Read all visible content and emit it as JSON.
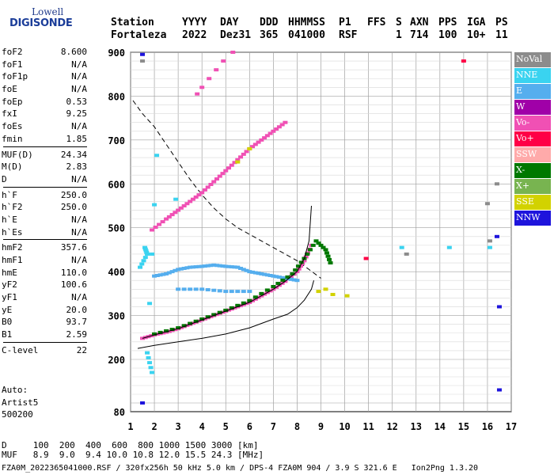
{
  "logo": {
    "top": "Lowell",
    "bottom": "DIGISONDE"
  },
  "header": {
    "labels": [
      "Station",
      "YYYY",
      "DAY",
      "DDD",
      "HHMMSS",
      "P1",
      "FFS",
      "S",
      "AXN",
      "PPS",
      "IGA",
      "PS"
    ],
    "values": [
      "Fortaleza",
      "2022",
      "Dez31",
      "365",
      "041000",
      "RSF",
      "",
      "1",
      "714",
      "100",
      "10+",
      "11"
    ]
  },
  "params": [
    {
      "name": "foF2",
      "value": "8.600"
    },
    {
      "name": "foF1",
      "value": "N/A"
    },
    {
      "name": "foF1p",
      "value": "N/A"
    },
    {
      "name": "foE",
      "value": "N/A"
    },
    {
      "name": "foEp",
      "value": "0.53"
    },
    {
      "name": "fxI",
      "value": "9.25"
    },
    {
      "name": "foEs",
      "value": "N/A"
    },
    {
      "name": "fmin",
      "value": "1.85"
    },
    {
      "name": "MUF(D)",
      "value": "24.34"
    },
    {
      "name": "M(D)",
      "value": "2.83"
    },
    {
      "name": "D",
      "value": "N/A"
    },
    {
      "name": "h`F",
      "value": "250.0"
    },
    {
      "name": "h`F2",
      "value": "250.0"
    },
    {
      "name": "h`E",
      "value": "N/A"
    },
    {
      "name": "h`Es",
      "value": "N/A"
    },
    {
      "name": "hmF2",
      "value": "357.6"
    },
    {
      "name": "hmF1",
      "value": "N/A"
    },
    {
      "name": "hmE",
      "value": "110.0"
    },
    {
      "name": "yF2",
      "value": "100.6"
    },
    {
      "name": "yF1",
      "value": "N/A"
    },
    {
      "name": "yE",
      "value": "20.0"
    },
    {
      "name": "B0",
      "value": "93.7"
    },
    {
      "name": "B1",
      "value": "2.59"
    },
    {
      "name": "C-level",
      "value": "22"
    }
  ],
  "autoscaling": {
    "line1": "Auto:",
    "line2": "Artist5",
    "line3": "500200"
  },
  "legend": [
    {
      "label": "NoVal",
      "color": "#8c8c8c"
    },
    {
      "label": "NNE",
      "color": "#3ad3f0"
    },
    {
      "label": "E",
      "color": "#55aeee"
    },
    {
      "label": "W",
      "color": "#a000a8"
    },
    {
      "label": "Vo-",
      "color": "#f050b4"
    },
    {
      "label": "Vo+",
      "color": "#ff0046"
    },
    {
      "label": "SSW",
      "color": "#ffaaaa"
    },
    {
      "label": "X-",
      "color": "#007800"
    },
    {
      "label": "X+",
      "color": "#78b450"
    },
    {
      "label": "SSE",
      "color": "#d2d200"
    },
    {
      "label": "NNW",
      "color": "#1e14dc"
    }
  ],
  "bottom": {
    "row1": "D     100  200  400  600  800 1000 1500 3000 [km]",
    "row2": "MUF   8.9  9.0  9.4 10.0 10.8 12.0 15.5 24.3 [MHz]"
  },
  "footer": "FZA0M_2022365041000.RSF / 320fx256h 50 kHz 5.0 km / DPS-4 FZA0M 904 / 3.9 S 321.6 E   Ion2Png 1.3.20",
  "chart_data": {
    "type": "scatter",
    "xlim": [
      1,
      17
    ],
    "ylim": [
      80,
      900
    ],
    "x_ticks": [
      1,
      2,
      3,
      4,
      5,
      6,
      7,
      8,
      9,
      10,
      11,
      12,
      13,
      14,
      15,
      16,
      17
    ],
    "y_ticks": [
      80,
      200,
      300,
      400,
      500,
      600,
      700,
      800,
      900
    ],
    "grid": true,
    "series": [
      {
        "name": "Vo-",
        "color": "#f050b4",
        "points": [
          [
            1.5,
            248
          ],
          [
            2.0,
            256
          ],
          [
            2.5,
            262
          ],
          [
            3.0,
            270
          ],
          [
            3.5,
            280
          ],
          [
            4.0,
            290
          ],
          [
            4.5,
            300
          ],
          [
            5.0,
            310
          ],
          [
            5.5,
            320
          ],
          [
            6.0,
            330
          ],
          [
            6.5,
            345
          ],
          [
            7.0,
            360
          ],
          [
            7.5,
            378
          ],
          [
            8.0,
            400
          ],
          [
            8.3,
            425
          ],
          [
            8.6,
            460
          ]
        ]
      },
      {
        "name": "Vo-",
        "color": "#f050b4",
        "points": [
          [
            1.9,
            495
          ],
          [
            2.5,
            520
          ],
          [
            3.0,
            540
          ],
          [
            3.5,
            560
          ],
          [
            4.0,
            580
          ],
          [
            4.5,
            605
          ],
          [
            5.0,
            630
          ],
          [
            5.5,
            655
          ],
          [
            6.0,
            680
          ],
          [
            6.5,
            700
          ],
          [
            7.0,
            720
          ],
          [
            7.5,
            740
          ]
        ]
      },
      {
        "name": "Vo-",
        "color": "#f050b4",
        "points": [
          [
            3.8,
            805
          ],
          [
            4.0,
            820
          ],
          [
            4.3,
            840
          ],
          [
            4.6,
            860
          ],
          [
            4.9,
            880
          ],
          [
            5.3,
            900
          ]
        ]
      },
      {
        "name": "E",
        "color": "#55aeee",
        "points": [
          [
            2.0,
            390
          ],
          [
            2.5,
            395
          ],
          [
            3.0,
            405
          ],
          [
            3.5,
            410
          ],
          [
            4.0,
            412
          ],
          [
            4.5,
            415
          ],
          [
            5.0,
            412
          ],
          [
            5.5,
            410
          ],
          [
            6.0,
            400
          ],
          [
            6.5,
            395
          ],
          [
            7.0,
            390
          ],
          [
            7.5,
            385
          ],
          [
            8.0,
            380
          ],
          [
            3.0,
            360
          ],
          [
            4.0,
            360
          ],
          [
            5.0,
            355
          ],
          [
            6.0,
            355
          ]
        ]
      },
      {
        "name": "X-",
        "color": "#007800",
        "points": [
          [
            2.0,
            258
          ],
          [
            3.0,
            272
          ],
          [
            4.0,
            292
          ],
          [
            5.0,
            312
          ],
          [
            6.0,
            334
          ],
          [
            7.0,
            366
          ],
          [
            7.8,
            395
          ],
          [
            8.3,
            430
          ],
          [
            8.8,
            470
          ],
          [
            9.2,
            450
          ],
          [
            9.4,
            420
          ]
        ]
      },
      {
        "name": "SSE",
        "color": "#d2d200",
        "points": [
          [
            8.9,
            355
          ],
          [
            9.2,
            360
          ],
          [
            9.5,
            348
          ],
          [
            10.1,
            345
          ],
          [
            5.5,
            650
          ],
          [
            6.0,
            680
          ]
        ]
      },
      {
        "name": "NNE",
        "color": "#3ad3f0",
        "points": [
          [
            1.6,
            455
          ],
          [
            1.7,
            440
          ],
          [
            1.4,
            410
          ],
          [
            2.9,
            565
          ],
          [
            12.4,
            455
          ],
          [
            14.4,
            455
          ],
          [
            16.1,
            455
          ],
          [
            1.9,
            170
          ],
          [
            1.7,
            215
          ],
          [
            2.1,
            665
          ]
        ]
      },
      {
        "name": "NNW",
        "color": "#1e14dc",
        "points": [
          [
            1.5,
            895
          ],
          [
            1.5,
            100
          ],
          [
            16.4,
            480
          ],
          [
            16.5,
            320
          ],
          [
            16.5,
            130
          ]
        ]
      },
      {
        "name": "NoVal",
        "color": "#8c8c8c",
        "points": [
          [
            1.5,
            880
          ],
          [
            16.0,
            555
          ],
          [
            16.1,
            470
          ],
          [
            16.4,
            600
          ],
          [
            12.6,
            440
          ]
        ]
      },
      {
        "name": "Vo+",
        "color": "#ff0046",
        "points": [
          [
            15.0,
            880
          ],
          [
            10.9,
            430
          ]
        ]
      }
    ],
    "profile_line": [
      [
        1.3,
        225
      ],
      [
        2.0,
        232
      ],
      [
        3.0,
        240
      ],
      [
        4.0,
        248
      ],
      [
        5.0,
        258
      ],
      [
        6.0,
        272
      ],
      [
        7.0,
        292
      ],
      [
        7.6,
        303
      ],
      [
        8.0,
        318
      ],
      [
        8.3,
        335
      ],
      [
        8.6,
        360
      ],
      [
        8.7,
        380
      ]
    ],
    "trace_line": [
      [
        1.5,
        248
      ],
      [
        2.0,
        256
      ],
      [
        3.0,
        270
      ],
      [
        4.0,
        290
      ],
      [
        5.0,
        310
      ],
      [
        6.0,
        330
      ],
      [
        7.0,
        360
      ],
      [
        7.5,
        378
      ],
      [
        8.0,
        400
      ],
      [
        8.3,
        430
      ],
      [
        8.5,
        470
      ],
      [
        8.6,
        550
      ]
    ],
    "muf_curve": [
      [
        1.1,
        790
      ],
      [
        1.5,
        760
      ],
      [
        2.0,
        730
      ],
      [
        2.5,
        690
      ],
      [
        3.0,
        650
      ],
      [
        3.5,
        610
      ],
      [
        4.0,
        575
      ],
      [
        4.5,
        545
      ],
      [
        5.0,
        520
      ],
      [
        5.5,
        500
      ],
      [
        6.0,
        485
      ],
      [
        6.5,
        470
      ],
      [
        7.0,
        455
      ],
      [
        7.5,
        440
      ],
      [
        8.0,
        425
      ],
      [
        8.5,
        405
      ],
      [
        9.0,
        385
      ]
    ]
  }
}
